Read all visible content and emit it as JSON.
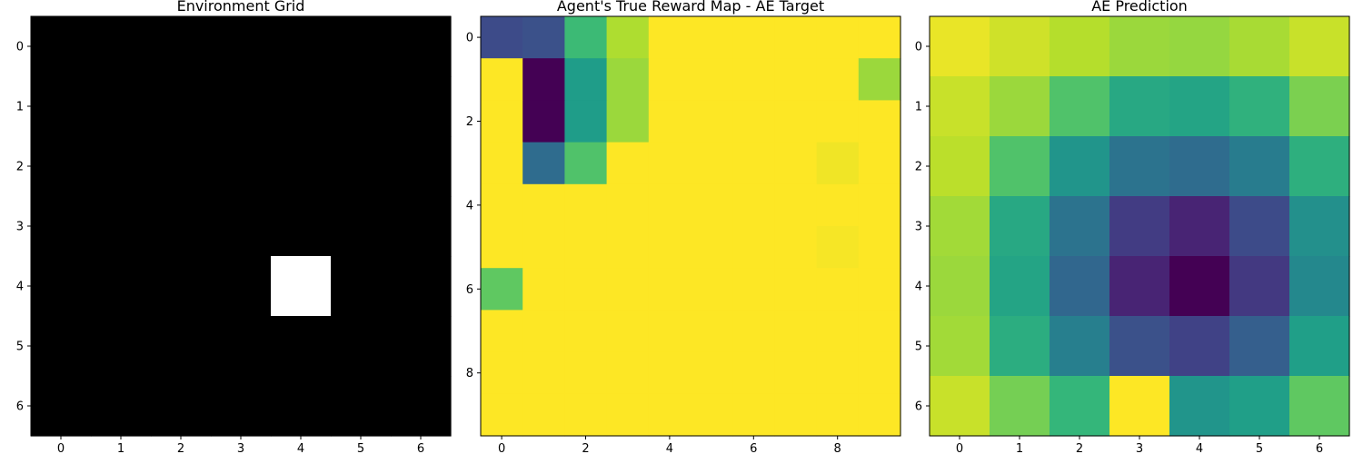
{
  "chart_data": [
    {
      "type": "heatmap",
      "title": "Environment Grid",
      "colormap": "gray",
      "rows": 7,
      "cols": 7,
      "xticks": [
        0,
        1,
        2,
        3,
        4,
        5,
        6
      ],
      "yticks": [
        0,
        1,
        2,
        3,
        4,
        5,
        6
      ],
      "values": [
        [
          0,
          0,
          0,
          0,
          0,
          0,
          0
        ],
        [
          0,
          0,
          0,
          0,
          0,
          0,
          0
        ],
        [
          0,
          0,
          0,
          0,
          0,
          0,
          0
        ],
        [
          0,
          0,
          0,
          0,
          0,
          0,
          0
        ],
        [
          0,
          0,
          0,
          0,
          1,
          0,
          0
        ],
        [
          0,
          0,
          0,
          0,
          0,
          0,
          0
        ],
        [
          0,
          0,
          0,
          0,
          0,
          0,
          0
        ]
      ]
    },
    {
      "type": "heatmap",
      "title": "Agent's True Reward Map - AE Target",
      "colormap": "viridis",
      "rows": 10,
      "cols": 10,
      "xticks": [
        0,
        2,
        4,
        6,
        8
      ],
      "yticks": [
        0,
        2,
        4,
        6,
        8
      ],
      "values": [
        [
          0.23,
          0.25,
          0.68,
          0.88,
          1,
          1,
          1,
          1,
          1,
          1
        ],
        [
          1,
          0.0,
          0.55,
          0.85,
          1,
          1,
          1,
          1,
          1,
          0.85
        ],
        [
          1,
          0.0,
          0.55,
          0.85,
          1,
          1,
          1,
          1,
          1,
          1
        ],
        [
          1,
          0.35,
          0.72,
          1,
          1,
          1,
          1,
          1,
          0.98,
          1
        ],
        [
          1,
          1,
          1,
          1,
          1,
          1,
          1,
          1,
          1,
          1
        ],
        [
          1,
          1,
          1,
          1,
          1,
          1,
          1,
          1,
          0.99,
          1
        ],
        [
          0.75,
          1,
          1,
          1,
          1,
          1,
          1,
          1,
          1,
          1
        ],
        [
          1,
          1,
          1,
          1,
          1,
          1,
          1,
          1,
          1,
          1
        ],
        [
          1,
          1,
          1,
          1,
          1,
          1,
          1,
          1,
          1,
          1
        ],
        [
          1,
          1,
          1,
          1,
          1,
          1,
          1,
          1,
          1,
          1
        ]
      ]
    },
    {
      "type": "heatmap",
      "title": "AE Prediction",
      "colormap": "viridis",
      "rows": 7,
      "cols": 7,
      "xticks": [
        0,
        1,
        2,
        3,
        4,
        5,
        6
      ],
      "yticks": [
        0,
        1,
        2,
        3,
        4,
        5,
        6
      ],
      "values": [
        [
          0.97,
          0.93,
          0.89,
          0.85,
          0.84,
          0.87,
          0.92
        ],
        [
          0.92,
          0.85,
          0.72,
          0.6,
          0.58,
          0.64,
          0.8
        ],
        [
          0.9,
          0.72,
          0.52,
          0.38,
          0.35,
          0.42,
          0.63
        ],
        [
          0.86,
          0.6,
          0.38,
          0.18,
          0.1,
          0.23,
          0.5
        ],
        [
          0.85,
          0.58,
          0.33,
          0.1,
          0.0,
          0.17,
          0.47
        ],
        [
          0.86,
          0.62,
          0.43,
          0.25,
          0.2,
          0.3,
          0.56
        ],
        [
          0.92,
          0.79,
          0.66,
          1.0,
          0.52,
          0.56,
          0.75
        ]
      ]
    }
  ]
}
